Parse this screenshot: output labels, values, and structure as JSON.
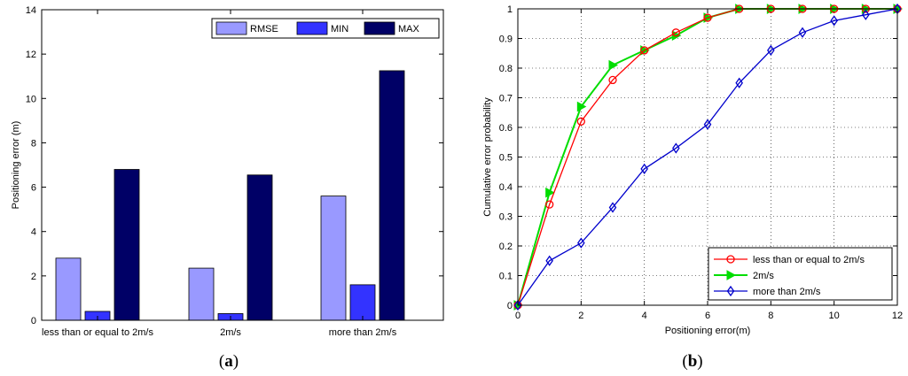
{
  "chart_data": [
    {
      "type": "bar",
      "panel_label": "a",
      "categories": [
        "less than or equal to 2m/s",
        "2m/s",
        "more than 2m/s"
      ],
      "series": [
        {
          "name": "RMSE",
          "color": "#9999ff",
          "values": [
            2.8,
            2.35,
            5.6
          ]
        },
        {
          "name": "MIN",
          "color": "#3333ff",
          "values": [
            0.4,
            0.3,
            1.6
          ]
        },
        {
          "name": "MAX",
          "color": "#000066",
          "values": [
            6.8,
            6.55,
            11.25
          ]
        }
      ],
      "ylabel": "Positioning error (m)",
      "xlabel": "",
      "ylim": [
        0,
        14
      ],
      "yticks": [
        0,
        2,
        4,
        6,
        8,
        10,
        12,
        14
      ],
      "grid": false,
      "legend_position": "top-right"
    },
    {
      "type": "line",
      "panel_label": "b",
      "xlabel": "Positioning error(m)",
      "ylabel": "Cumulative error probability",
      "xlim": [
        0,
        12
      ],
      "ylim": [
        0,
        1
      ],
      "xticks": [
        0,
        2,
        4,
        6,
        8,
        10,
        12
      ],
      "yticks": [
        0,
        0.1,
        0.2,
        0.3,
        0.4,
        0.5,
        0.6,
        0.7,
        0.8,
        0.9,
        1
      ],
      "grid": true,
      "legend_position": "bottom-right",
      "series": [
        {
          "name": "less than or equal to 2m/s",
          "color": "#ff0000",
          "marker": "circle",
          "x": [
            0,
            1,
            2,
            3,
            4,
            5,
            6,
            7,
            8,
            9,
            10,
            11,
            12
          ],
          "y": [
            0,
            0.34,
            0.62,
            0.76,
            0.86,
            0.92,
            0.97,
            1,
            1,
            1,
            1,
            1,
            1
          ]
        },
        {
          "name": "2m/s",
          "color": "#00dd00",
          "marker": "triangle-right",
          "x": [
            0,
            1,
            2,
            3,
            4,
            5,
            6,
            7,
            8,
            9,
            10,
            11,
            12
          ],
          "y": [
            0,
            0.38,
            0.67,
            0.81,
            0.86,
            0.91,
            0.97,
            1,
            1,
            1,
            1,
            1,
            1
          ]
        },
        {
          "name": "more than 2m/s",
          "color": "#0000cc",
          "marker": "diamond",
          "x": [
            0,
            1,
            2,
            3,
            4,
            5,
            6,
            7,
            8,
            9,
            10,
            11,
            12
          ],
          "y": [
            0,
            0.15,
            0.21,
            0.33,
            0.46,
            0.53,
            0.61,
            0.75,
            0.86,
            0.92,
            0.96,
            0.98,
            1
          ]
        }
      ]
    }
  ]
}
